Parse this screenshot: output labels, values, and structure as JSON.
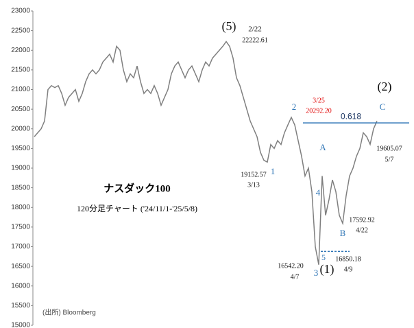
{
  "chart_data": {
    "type": "line",
    "title": "ナスダック100",
    "subtitle": "120分足チャート ('24/11/1-'25/5/8)",
    "source": "(出所) Bloomberg",
    "color": "#7f7f7f",
    "values": [
      19800,
      19900,
      20000,
      20200,
      21000,
      21100,
      21050,
      21100,
      20900,
      20600,
      20800,
      20900,
      21000,
      20700,
      20900,
      21200,
      21400,
      21500,
      21400,
      21500,
      21700,
      21800,
      21900,
      21700,
      22100,
      22000,
      21500,
      21200,
      21400,
      21300,
      21600,
      21200,
      20900,
      21000,
      20900,
      21100,
      20900,
      20600,
      20800,
      21000,
      21400,
      21600,
      21700,
      21500,
      21300,
      21500,
      21600,
      21400,
      21200,
      21500,
      21700,
      21600,
      21800,
      21900,
      22000,
      22100,
      22222.61,
      22100,
      21800,
      21300,
      21100,
      20800,
      20500,
      20200,
      20000,
      19800,
      19400,
      19200,
      19152.57,
      19600,
      19500,
      19700,
      19600,
      19900,
      20100,
      20292.2,
      20100,
      19700,
      19300,
      18800,
      19000,
      18400,
      17000,
      16542.2,
      18800,
      17800,
      18200,
      18700,
      18400,
      17800,
      17592.92,
      18300,
      18800,
      19000,
      19300,
      19500,
      19900,
      19800,
      19605.07,
      20000,
      20200
    ],
    "ylim": [
      15000,
      23000
    ],
    "yticks": [
      15000,
      15500,
      16000,
      16500,
      17000,
      17500,
      18000,
      18500,
      19000,
      19500,
      20000,
      20500,
      21000,
      21500,
      22000,
      22500,
      23000
    ],
    "reference_line": {
      "value": 20150,
      "label": "0.618",
      "color": "#2e75b6"
    },
    "support_line": {
      "value": 16880,
      "color": "#2e75b6"
    },
    "annotations": [
      "(5)",
      "2/22",
      "22222.61",
      "3/25",
      "20292.20",
      "(2)",
      "2",
      "C",
      "19605.07",
      "5/7",
      "19152.57",
      "1",
      "3/13",
      "A",
      "4",
      "17592.92",
      "4/22",
      "B",
      "5",
      "16850.18",
      "4/9",
      "16542.20",
      "4/7",
      "3",
      "(1)"
    ]
  }
}
